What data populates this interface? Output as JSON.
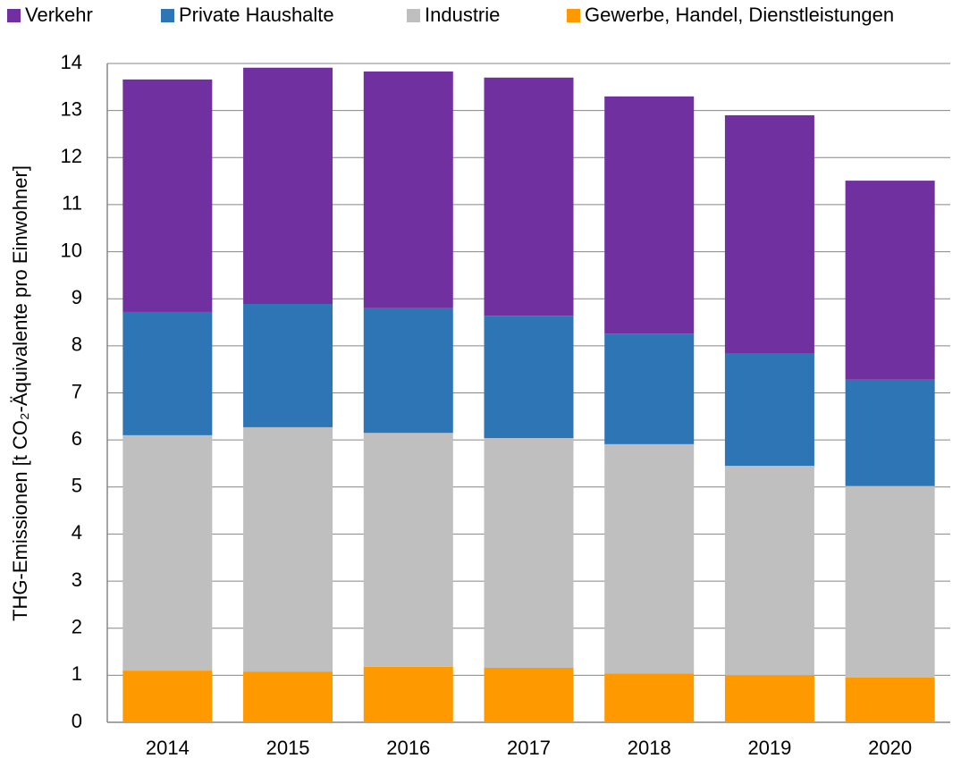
{
  "chart_data": {
    "type": "stacked_bar",
    "y_label": "THG-Emissionen [t CO₂-Äquivalente pro Einwohner]",
    "categories": [
      "2014",
      "2015",
      "2016",
      "2017",
      "2018",
      "2019",
      "2020"
    ],
    "series": [
      {
        "name": "Verkehr",
        "color": "#7030a0",
        "values": [
          4.94,
          5.02,
          5.03,
          5.06,
          5.04,
          5.07,
          4.23
        ]
      },
      {
        "name": "Private Haushalte",
        "color": "#2e75b6",
        "values": [
          2.62,
          2.62,
          2.65,
          2.6,
          2.35,
          2.38,
          2.26
        ]
      },
      {
        "name": "Industrie",
        "color": "#bfbfbf",
        "values": [
          5.0,
          5.19,
          4.97,
          4.88,
          4.87,
          4.45,
          4.07
        ]
      },
      {
        "name": "Gewerbe, Handel, Dienstleistungen",
        "color": "#ff9900",
        "values": [
          1.1,
          1.08,
          1.18,
          1.16,
          1.04,
          1.0,
          0.95
        ]
      }
    ],
    "ylim": [
      0,
      14
    ],
    "yticks": [
      0,
      1,
      2,
      3,
      4,
      5,
      6,
      7,
      8,
      9,
      10,
      11,
      12,
      13,
      14
    ],
    "grid": true,
    "legend": "top"
  }
}
